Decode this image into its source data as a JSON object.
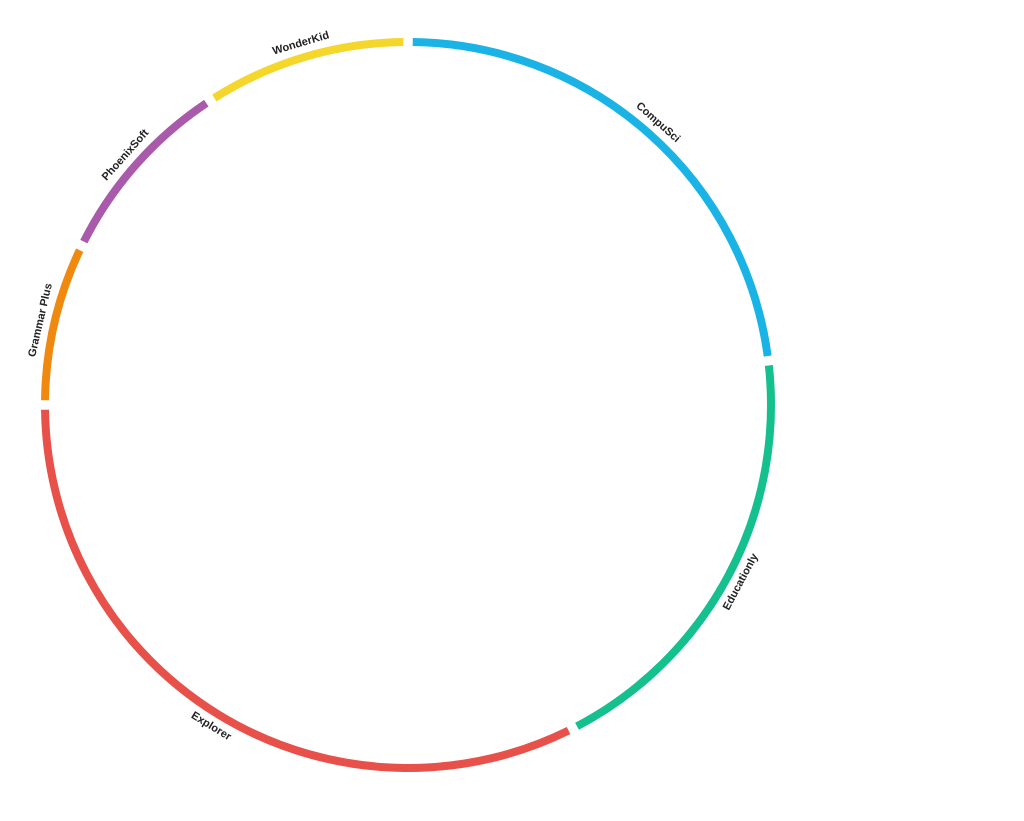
{
  "chart_data": {
    "type": "ring",
    "categories": [
      "CompuSci",
      "Educationly",
      "Explorer",
      "Grammar Plus",
      "PhoenixSoft",
      "WonderKid"
    ],
    "values": [
      83,
      70,
      117,
      26,
      31,
      33
    ],
    "colors": [
      "#1ab3e6",
      "#13c08e",
      "#e8504a",
      "#f0890f",
      "#aa5aaa",
      "#f5d72c"
    ]
  }
}
